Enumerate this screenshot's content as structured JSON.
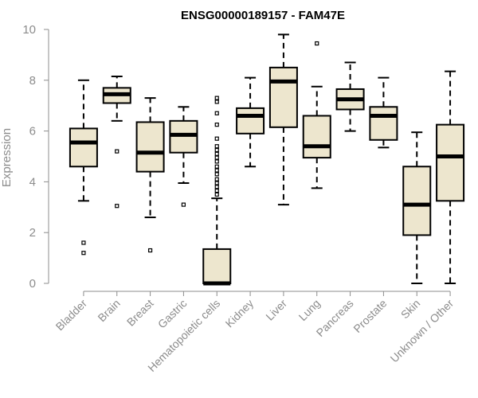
{
  "chart_data": {
    "type": "boxplot",
    "title": "ENSG00000189157 - FAM47E",
    "xlabel": "",
    "ylabel": "Expression",
    "ylim": [
      0,
      10
    ],
    "yticks": [
      0,
      2,
      4,
      6,
      8,
      10
    ],
    "grid": false,
    "box_fill": "#ede6ce",
    "text_color": "#8c8c8c",
    "categories": [
      "Bladder",
      "Brain",
      "Breast",
      "Gastric",
      "Hematopoietic cells",
      "Kidney",
      "Liver",
      "Lung",
      "Pancreas",
      "Prostate",
      "Skin",
      "Unknown / Other"
    ],
    "boxes": [
      {
        "name": "Bladder",
        "whislo": 3.25,
        "q1": 4.6,
        "med": 5.55,
        "q3": 6.1,
        "whishi": 8.0,
        "fliers": [
          1.6,
          1.2
        ]
      },
      {
        "name": "Brain",
        "whislo": 6.4,
        "q1": 7.1,
        "med": 7.45,
        "q3": 7.7,
        "whishi": 8.15,
        "fliers": [
          5.2,
          3.05
        ]
      },
      {
        "name": "Breast",
        "whislo": 2.6,
        "q1": 4.4,
        "med": 5.15,
        "q3": 6.35,
        "whishi": 7.3,
        "fliers": [
          1.3
        ]
      },
      {
        "name": "Gastric",
        "whislo": 3.95,
        "q1": 5.15,
        "med": 5.85,
        "q3": 6.4,
        "whishi": 6.95,
        "fliers": [
          3.1
        ]
      },
      {
        "name": "Hematopoietic cells",
        "whislo": 0.0,
        "q1": 0.0,
        "med": 0.0,
        "q3": 1.35,
        "whishi": 3.35,
        "fliers": [
          7.3,
          7.15,
          6.7,
          6.25,
          5.7,
          5.4,
          5.25,
          5.1,
          4.95,
          4.8,
          4.6,
          4.45,
          4.3,
          4.1,
          3.95,
          3.8,
          3.65,
          3.5
        ]
      },
      {
        "name": "Kidney",
        "whislo": 4.6,
        "q1": 5.9,
        "med": 6.6,
        "q3": 6.9,
        "whishi": 8.1,
        "fliers": []
      },
      {
        "name": "Liver",
        "whislo": 3.1,
        "q1": 6.15,
        "med": 7.95,
        "q3": 8.5,
        "whishi": 9.8,
        "fliers": []
      },
      {
        "name": "Lung",
        "whislo": 3.75,
        "q1": 4.95,
        "med": 5.4,
        "q3": 6.6,
        "whishi": 7.75,
        "fliers": [
          9.45
        ]
      },
      {
        "name": "Pancreas",
        "whislo": 6.0,
        "q1": 6.85,
        "med": 7.25,
        "q3": 7.65,
        "whishi": 8.7,
        "fliers": []
      },
      {
        "name": "Prostate",
        "whislo": 5.35,
        "q1": 5.65,
        "med": 6.6,
        "q3": 6.95,
        "whishi": 8.1,
        "fliers": []
      },
      {
        "name": "Skin",
        "whislo": 0.0,
        "q1": 1.9,
        "med": 3.1,
        "q3": 4.6,
        "whishi": 5.95,
        "fliers": []
      },
      {
        "name": "Unknown / Other",
        "whislo": 0.0,
        "q1": 3.25,
        "med": 5.0,
        "q3": 6.25,
        "whishi": 8.35,
        "fliers": []
      }
    ]
  }
}
